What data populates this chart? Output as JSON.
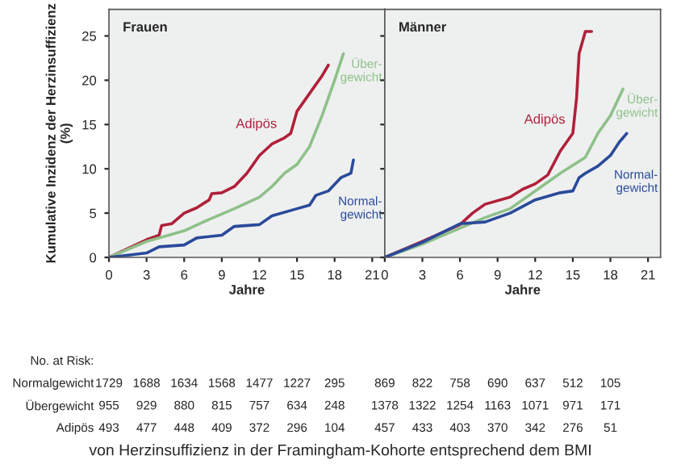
{
  "chart_data": [
    {
      "type": "line",
      "title": "Frauen",
      "xlabel": "Jahre",
      "ylabel": "Kumulative Inzidenz der Herzinsuffizienz (%)",
      "xlim": [
        0,
        22
      ],
      "ylim": [
        0,
        28
      ],
      "xticks": [
        0,
        3,
        6,
        9,
        12,
        15,
        18,
        21
      ],
      "yticks": [
        0,
        5,
        10,
        15,
        20,
        25
      ],
      "grid": false,
      "legend": false,
      "series": [
        {
          "name": "Adipös",
          "color": "#b0203a",
          "x": [
            0,
            3,
            4,
            4.2,
            5,
            6,
            7,
            8,
            8.2,
            9,
            10,
            11,
            12,
            13,
            14,
            14.5,
            15,
            16,
            16.5,
            17,
            17.5
          ],
          "values": [
            0,
            2,
            2.5,
            3.6,
            3.8,
            5,
            5.6,
            6.5,
            7.2,
            7.3,
            8,
            9.5,
            11.5,
            12.8,
            13.5,
            14,
            16.5,
            18.5,
            19.5,
            20.5,
            21.7
          ]
        },
        {
          "name": "Über-\ngewicht",
          "color": "#8fc08a",
          "x": [
            0,
            3,
            6,
            8,
            10,
            12,
            13,
            14,
            15,
            16,
            17,
            18,
            18.7
          ],
          "values": [
            0,
            1.8,
            3,
            4.3,
            5.5,
            6.8,
            8,
            9.5,
            10.5,
            12.5,
            16,
            20,
            23
          ]
        },
        {
          "name": "Normal-\ngewicht",
          "color": "#2a4a9a",
          "x": [
            0,
            3,
            4,
            6,
            7,
            9,
            10,
            12,
            13,
            15,
            16,
            16.5,
            17.5,
            18.5,
            19.3,
            19.5
          ],
          "values": [
            0,
            0.5,
            1.2,
            1.4,
            2.2,
            2.5,
            3.5,
            3.7,
            4.7,
            5.5,
            5.9,
            7,
            7.5,
            9,
            9.5,
            11
          ]
        }
      ],
      "annotations": [
        "No. at Risk:",
        "Normalgewicht",
        "Übergewicht",
        "Adipös",
        "1729 1688 1634 1568 1477 1227 295",
        "955 929 880 815 757 634 248",
        "493 477 448 409 372 296 104",
        "von Herzinsuffizienz in der Framingham-Kohorte entsprechend dem BMI"
      ]
    },
    {
      "type": "line",
      "title": "Männer",
      "xlabel": "Jahre",
      "tick_labels": "x",
      "xlim": [
        0,
        22
      ],
      "ylim": [
        0,
        28
      ],
      "xticks": [
        0,
        3,
        6,
        9,
        12,
        15,
        18,
        21
      ],
      "yticks": [
        0,
        5,
        10,
        15,
        20,
        25
      ],
      "grid": false,
      "legend": false,
      "series": [
        {
          "name": "Adipös",
          "color": "#b0203a",
          "x": [
            0,
            3,
            6,
            7,
            8,
            10,
            11,
            12,
            13,
            14,
            15,
            15.3,
            15.5,
            16,
            16.5
          ],
          "values": [
            0,
            1.8,
            3.7,
            5,
            6,
            6.8,
            7.7,
            8.3,
            9.3,
            12,
            14,
            18,
            23,
            25.5,
            25.5
          ]
        },
        {
          "name": "Über-\ngewicht",
          "color": "#8fc08a",
          "x": [
            0,
            3,
            5,
            8,
            10,
            12,
            14,
            16,
            17,
            18,
            19
          ],
          "values": [
            0,
            1.5,
            2.7,
            4.5,
            5.5,
            7.5,
            9.5,
            11.3,
            14,
            16,
            19
          ]
        },
        {
          "name": "Normal-\ngewicht",
          "color": "#2a4a9a",
          "x": [
            0,
            3,
            6,
            8,
            10,
            12,
            14,
            15,
            15.5,
            16,
            17,
            18,
            18.7,
            19.3
          ],
          "values": [
            0,
            1.7,
            3.8,
            4,
            5,
            6.5,
            7.3,
            7.5,
            9,
            9.5,
            10.3,
            11.5,
            13,
            14
          ]
        }
      ],
      "annotations": [
        "869 822 758 690 637 512 105",
        "1378 1322 1254 1163 1071 971 171",
        "457 433 403 370 342 276 51"
      ]
    }
  ]
}
